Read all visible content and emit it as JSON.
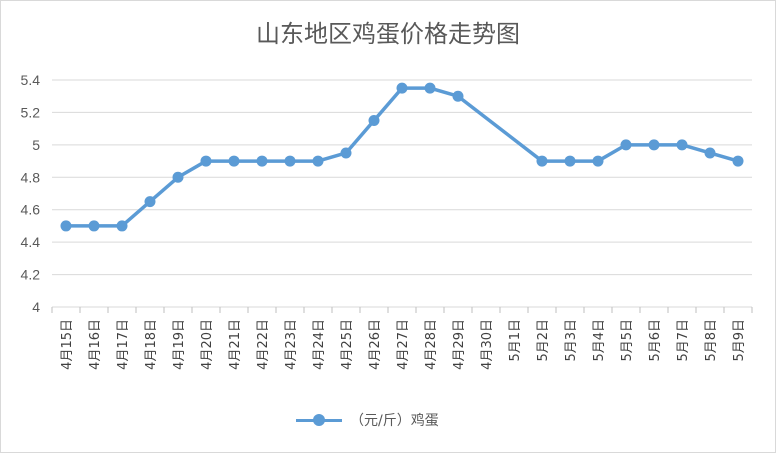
{
  "chart_data": {
    "type": "line",
    "title": "山东地区鸡蛋价格走势图",
    "xlabel": "",
    "ylabel": "",
    "ylim": [
      4,
      5.4
    ],
    "yticks": [
      "4",
      "4.2",
      "4.4",
      "4.6",
      "4.8",
      "5",
      "5.2",
      "5.4"
    ],
    "grid": true,
    "legend_position": "bottom",
    "categories": [
      "4月15日",
      "4月16日",
      "4月17日",
      "4月18日",
      "4月19日",
      "4月20日",
      "4月21日",
      "4月22日",
      "4月23日",
      "4月24日",
      "4月25日",
      "4月26日",
      "4月27日",
      "4月28日",
      "4月29日",
      "4月30日",
      "5月1日",
      "5月2日",
      "5月3日",
      "5月4日",
      "5月5日",
      "5月6日",
      "5月7日",
      "5月8日",
      "5月9日"
    ],
    "series": [
      {
        "name": "（元/斤）鸡蛋",
        "color": "#5b9bd5",
        "values": [
          4.5,
          4.5,
          4.5,
          4.65,
          4.8,
          4.9,
          4.9,
          4.9,
          4.9,
          4.9,
          4.95,
          5.15,
          5.35,
          5.35,
          5.3,
          null,
          null,
          4.9,
          4.9,
          4.9,
          5.0,
          5.0,
          5.0,
          4.95,
          4.9
        ]
      }
    ]
  }
}
